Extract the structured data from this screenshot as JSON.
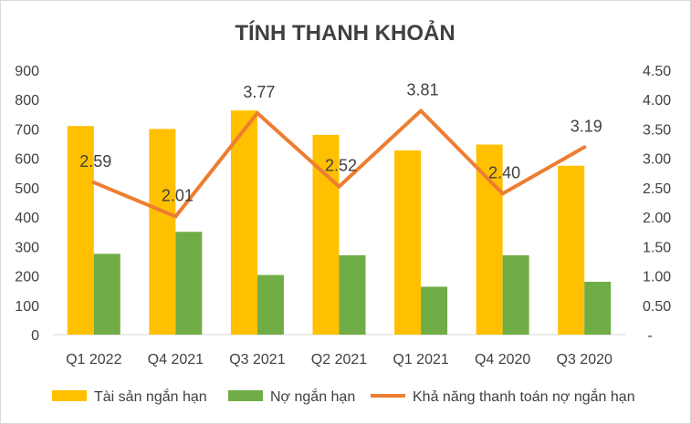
{
  "chart_data": {
    "type": "bar",
    "title": "TÍNH THANH KHOẢN",
    "categories": [
      "Q1 2022",
      "Q4 2021",
      "Q3 2021",
      "Q2 2021",
      "Q1 2021",
      "Q4 2020",
      "Q3 2020"
    ],
    "series": [
      {
        "name": "Tài sản ngắn hạn",
        "type": "bar",
        "axis": "left",
        "color": "#ffc000",
        "values": [
          710,
          700,
          763,
          680,
          627,
          647,
          575
        ]
      },
      {
        "name": "Nợ ngắn hạn",
        "type": "bar",
        "axis": "left",
        "color": "#70ad47",
        "values": [
          275,
          350,
          203,
          270,
          163,
          270,
          180
        ]
      },
      {
        "name": "Khả năng thanh toán nợ ngắn hạn",
        "type": "line",
        "axis": "right",
        "color": "#ed7d31",
        "values": [
          2.59,
          2.01,
          3.77,
          2.52,
          3.81,
          2.4,
          3.19
        ],
        "labels": [
          "2.59",
          "2.01",
          "3.77",
          "2.52",
          "3.81",
          "2.40",
          "3.19"
        ]
      }
    ],
    "y_left": {
      "min": 0,
      "max": 900,
      "step": 100,
      "ticks": [
        "0",
        "100",
        "200",
        "300",
        "400",
        "500",
        "600",
        "700",
        "800",
        "900"
      ]
    },
    "y_right": {
      "min": 0,
      "max": 4.5,
      "step": 0.5,
      "ticks": [
        "-",
        "0.50",
        "1.00",
        "1.50",
        "2.00",
        "2.50",
        "3.00",
        "3.50",
        "4.00",
        "4.50"
      ]
    },
    "grid": false,
    "legend_position": "bottom"
  }
}
